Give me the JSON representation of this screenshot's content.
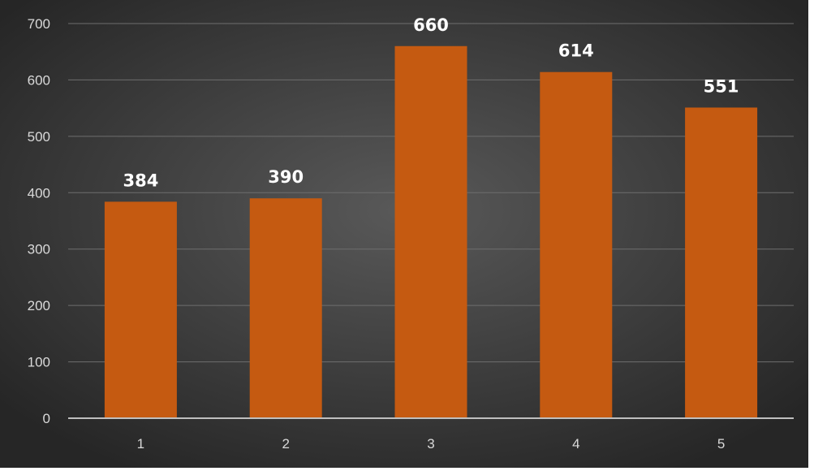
{
  "chart_data": {
    "type": "bar",
    "categories": [
      "1",
      "2",
      "3",
      "4",
      "5"
    ],
    "values": [
      384,
      390,
      660,
      614,
      551
    ],
    "data_labels": [
      "384",
      "390",
      "660",
      "614",
      "551"
    ],
    "y_ticks": [
      "0",
      "100",
      "200",
      "300",
      "400",
      "500",
      "600",
      "700"
    ],
    "ylim": [
      0,
      700
    ],
    "grid": true,
    "legend": "none"
  },
  "colors": {
    "bar": "#c55a11",
    "grid": "#6e6e6e",
    "axis": "#bfbfbf",
    "text": "#d9d9d9",
    "label": "#ffffff",
    "bg_center": "#595959",
    "bg_edge": "#262626"
  }
}
